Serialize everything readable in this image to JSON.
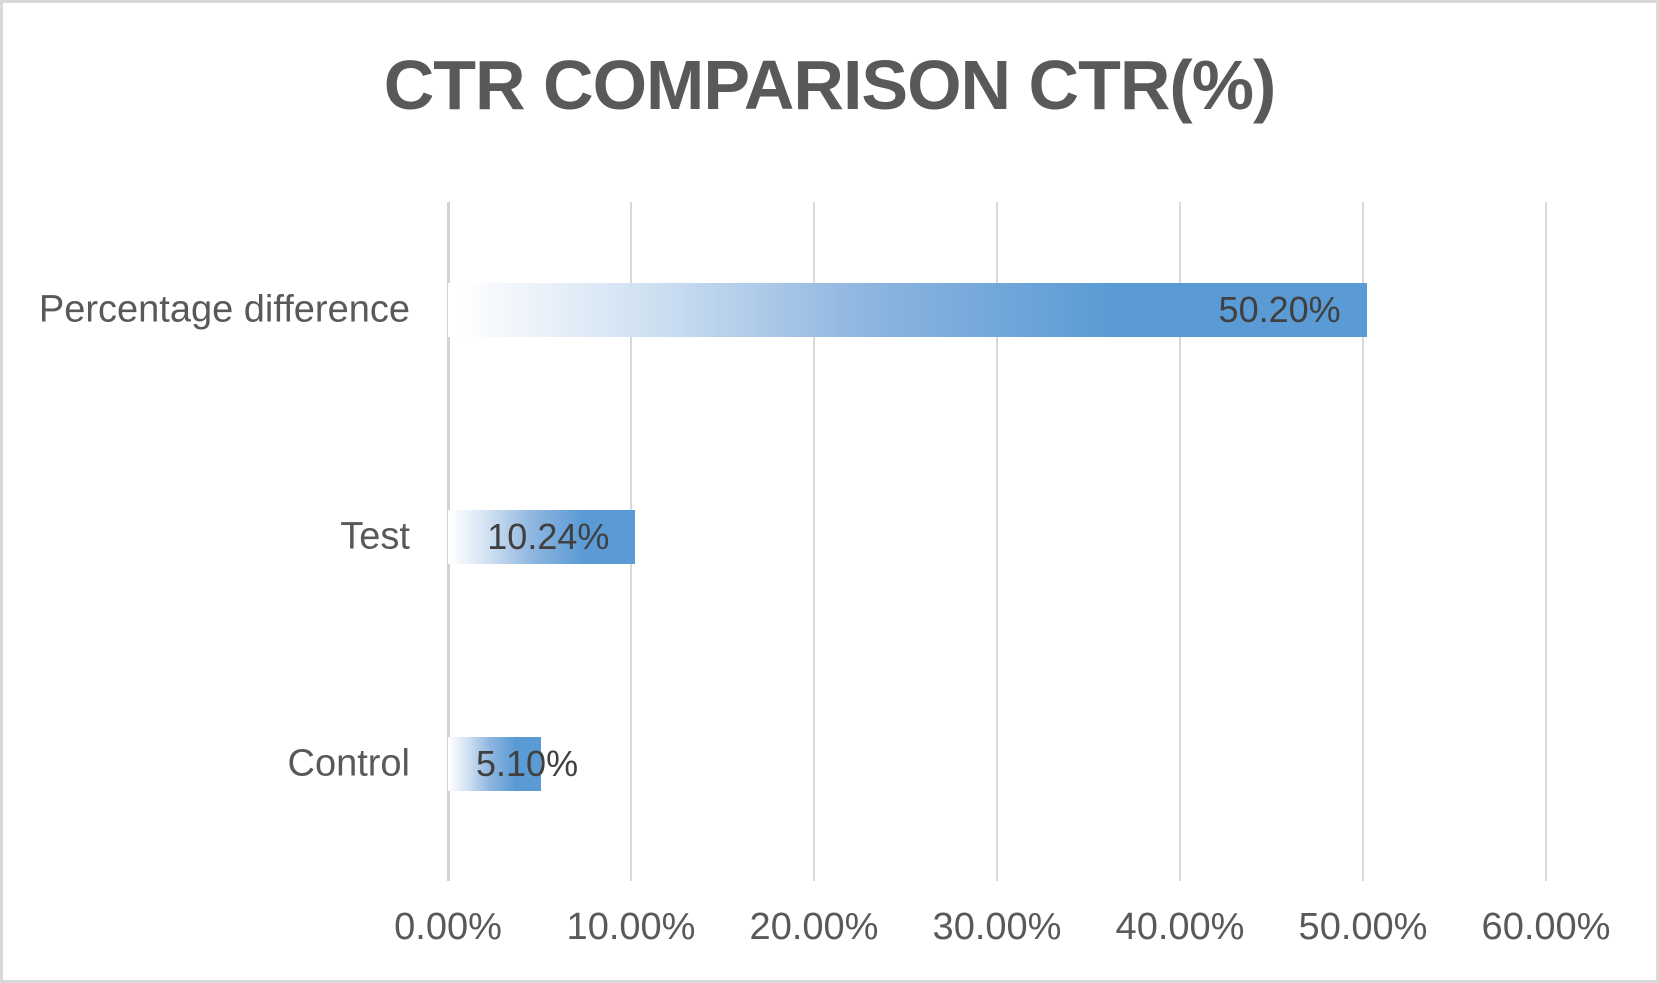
{
  "chart_data": {
    "type": "bar",
    "orientation": "horizontal",
    "title": "CTR COMPARISON CTR(%)",
    "categories": [
      "Percentage difference",
      "Test",
      "Control"
    ],
    "values": [
      50.2,
      10.24,
      5.1
    ],
    "value_labels": [
      "50.20%",
      "10.24%",
      "5.10%"
    ],
    "x_tick_labels": [
      "0.00%",
      "10.00%",
      "20.00%",
      "30.00%",
      "40.00%",
      "50.00%",
      "60.00%"
    ],
    "xlim": [
      0,
      60
    ],
    "xlabel": "",
    "ylabel": "",
    "grid": true,
    "legend": "none",
    "colors": {
      "bar_fill_end": "#5B9BD5",
      "bar_fill_start": "#FFFFFF",
      "title_text": "#595959",
      "axis_text": "#595959",
      "data_label_text": "#404040",
      "gridline": "#D9D9D9",
      "frame_border": "#D9D9D9",
      "background": "#FFFFFF"
    }
  }
}
